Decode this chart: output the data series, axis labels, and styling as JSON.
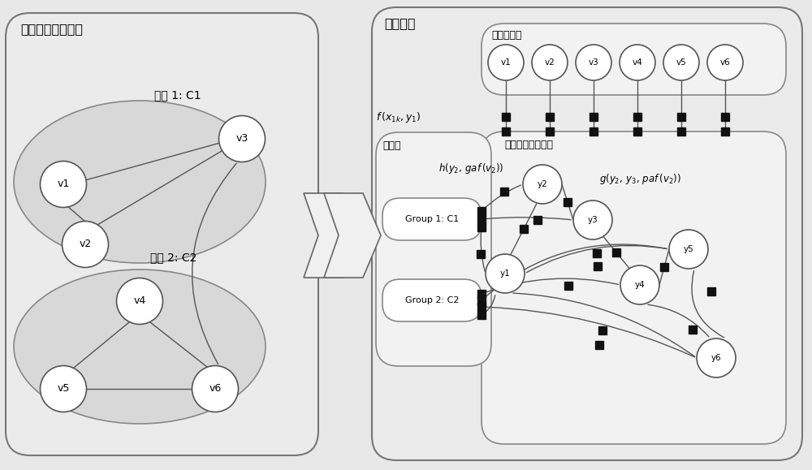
{
  "bg_color": "#e8e8e8",
  "left_title": "备选用户网络结构",
  "right_title": "预测模型",
  "c1_label": "社团 1: C1",
  "c2_label": "社团 2: C2",
  "top_box_label": "备选用户集",
  "result_box_label": "备选用户集结果集",
  "community_box_label": "社团集",
  "group1_label": "Group 1: C1",
  "group2_label": "Group 2: C2",
  "top_nodes": [
    "v1",
    "v2",
    "v3",
    "v4",
    "v5",
    "v6"
  ],
  "y_nodes": [
    "y1",
    "y2",
    "y3",
    "y4",
    "y5",
    "y6"
  ]
}
